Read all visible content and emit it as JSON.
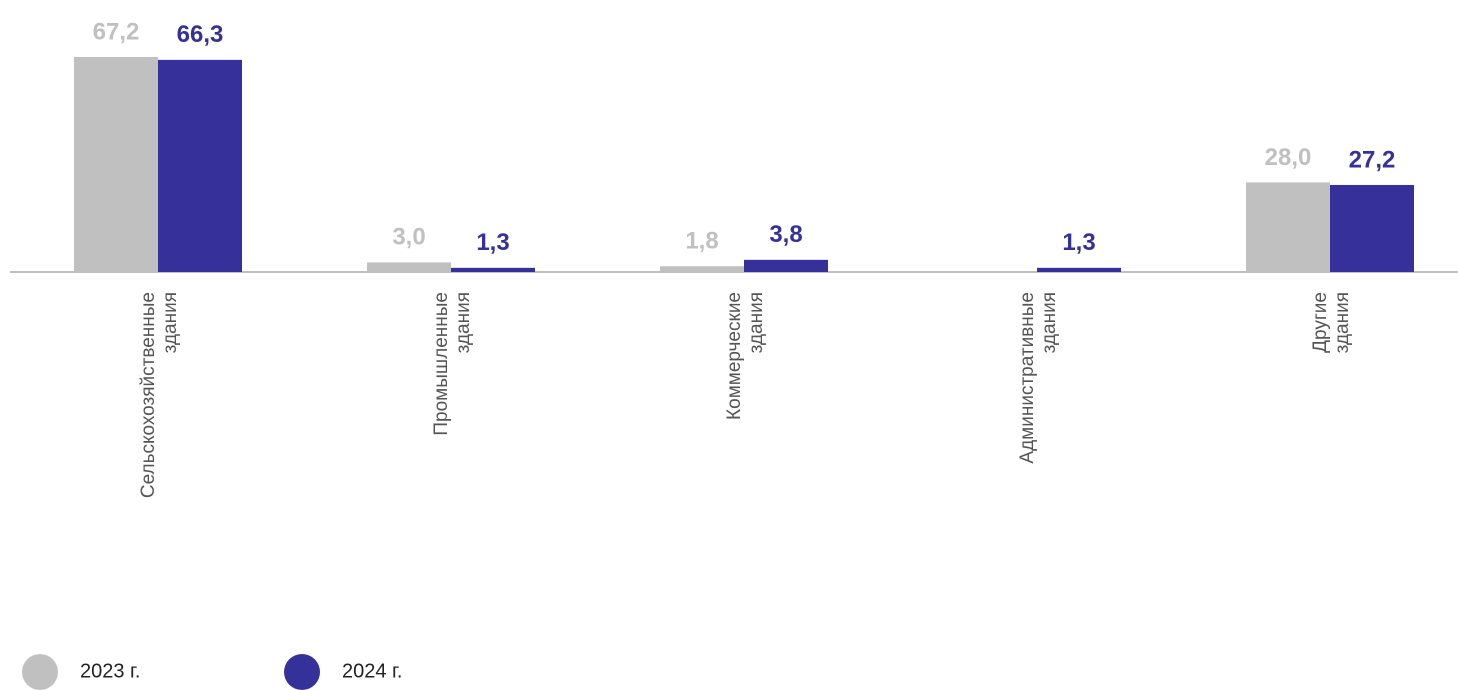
{
  "chart_data": {
    "type": "bar",
    "categories": [
      [
        "Сельскохозяйственные",
        "здания"
      ],
      [
        "Промышленные",
        "здания"
      ],
      [
        "Коммерческие",
        "здания"
      ],
      [
        "Административные",
        "здания"
      ],
      [
        "Другие",
        "здания"
      ]
    ],
    "series": [
      {
        "name": "2023 г.",
        "color": "#c0c0c0",
        "values": [
          67.2,
          3.0,
          1.8,
          null,
          28.0
        ],
        "value_labels": [
          "67,2",
          "3,0",
          "1,8",
          null,
          "28,0"
        ]
      },
      {
        "name": "2024 г.",
        "color": "#36309a",
        "values": [
          66.3,
          1.3,
          3.8,
          1.3,
          27.2
        ],
        "value_labels": [
          "66,3",
          "1,3",
          "3,8",
          "1,3",
          "27,2"
        ]
      }
    ]
  }
}
